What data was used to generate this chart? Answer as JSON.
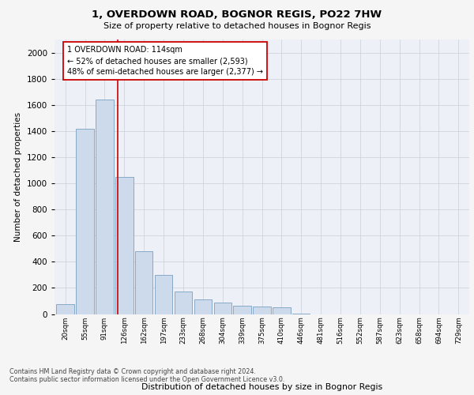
{
  "title_line1": "1, OVERDOWN ROAD, BOGNOR REGIS, PO22 7HW",
  "title_line2": "Size of property relative to detached houses in Bognor Regis",
  "xlabel": "Distribution of detached houses by size in Bognor Regis",
  "ylabel": "Number of detached properties",
  "bar_labels": [
    "20sqm",
    "55sqm",
    "91sqm",
    "126sqm",
    "162sqm",
    "197sqm",
    "233sqm",
    "268sqm",
    "304sqm",
    "339sqm",
    "375sqm",
    "410sqm",
    "446sqm",
    "481sqm",
    "516sqm",
    "552sqm",
    "587sqm",
    "623sqm",
    "658sqm",
    "694sqm",
    "729sqm"
  ],
  "bar_values": [
    75,
    1420,
    1640,
    1050,
    480,
    300,
    175,
    110,
    85,
    65,
    55,
    50,
    5,
    0,
    0,
    0,
    0,
    0,
    0,
    0,
    0
  ],
  "bar_color": "#cddaeb",
  "bar_edge_color": "#7aa0c0",
  "grid_color": "#c8cfd8",
  "vline_color": "#cc0000",
  "annotation_text": "1 OVERDOWN ROAD: 114sqm\n← 52% of detached houses are smaller (2,593)\n48% of semi-detached houses are larger (2,377) →",
  "annotation_box_color": "#ffffff",
  "annotation_box_edge": "#cc0000",
  "ylim": [
    0,
    2100
  ],
  "yticks": [
    0,
    200,
    400,
    600,
    800,
    1000,
    1200,
    1400,
    1600,
    1800,
    2000
  ],
  "footer_text": "Contains HM Land Registry data © Crown copyright and database right 2024.\nContains public sector information licensed under the Open Government Licence v3.0.",
  "background_color": "#edf1f7"
}
